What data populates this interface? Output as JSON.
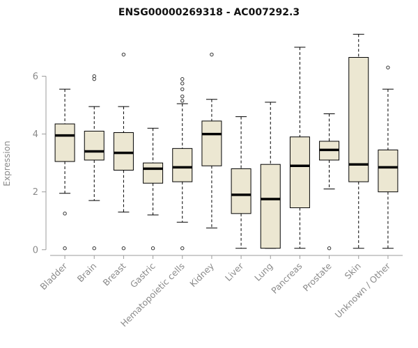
{
  "chart_data": {
    "type": "boxplot",
    "title": "ENSG00000269318 - AC007292.3",
    "ylabel": "Expression",
    "xlabel": "",
    "ylim": [
      -0.15,
      7.6
    ],
    "yticks": [
      0,
      2,
      4,
      6
    ],
    "grid": false,
    "legend": "none",
    "categories": [
      "Bladder",
      "Brain",
      "Breast",
      "Gastric",
      "Hematopoietic cells",
      "Kidney",
      "Liver",
      "Lung",
      "Pancreas",
      "Prostate",
      "Skin",
      "Unknown / Other"
    ],
    "boxes": [
      {
        "label": "Bladder",
        "low": 1.95,
        "q1": 3.05,
        "median": 3.95,
        "q3": 4.35,
        "high": 5.55,
        "outliers": [
          1.25,
          0.05
        ]
      },
      {
        "label": "Brain",
        "low": 1.7,
        "q1": 3.1,
        "median": 3.4,
        "q3": 4.1,
        "high": 4.95,
        "outliers": [
          5.9,
          6.0,
          0.05
        ]
      },
      {
        "label": "Breast",
        "low": 1.3,
        "q1": 2.75,
        "median": 3.35,
        "q3": 4.05,
        "high": 4.95,
        "outliers": [
          6.75,
          0.05
        ]
      },
      {
        "label": "Gastric",
        "low": 1.2,
        "q1": 2.3,
        "median": 2.8,
        "q3": 3.0,
        "high": 4.2,
        "outliers": [
          0.05
        ]
      },
      {
        "label": "Hematopoietic cells",
        "low": 0.95,
        "q1": 2.35,
        "median": 2.85,
        "q3": 3.5,
        "high": 5.05,
        "outliers": [
          5.15,
          5.3,
          5.55,
          5.75,
          5.9,
          0.05
        ]
      },
      {
        "label": "Kidney",
        "low": 0.75,
        "q1": 2.9,
        "median": 4.0,
        "q3": 4.45,
        "high": 5.2,
        "outliers": [
          6.75
        ]
      },
      {
        "label": "Liver",
        "low": 0.05,
        "q1": 1.25,
        "median": 1.9,
        "q3": 2.8,
        "high": 4.6,
        "outliers": []
      },
      {
        "label": "Lung",
        "low": 0.05,
        "q1": 0.05,
        "median": 1.75,
        "q3": 2.95,
        "high": 5.1,
        "outliers": []
      },
      {
        "label": "Pancreas",
        "low": 0.05,
        "q1": 1.45,
        "median": 2.9,
        "q3": 3.9,
        "high": 7.0,
        "outliers": []
      },
      {
        "label": "Prostate",
        "low": 2.1,
        "q1": 3.1,
        "median": 3.45,
        "q3": 3.75,
        "high": 4.7,
        "outliers": [
          0.05
        ]
      },
      {
        "label": "Skin",
        "low": 0.05,
        "q1": 2.35,
        "median": 2.95,
        "q3": 6.65,
        "high": 7.45,
        "outliers": []
      },
      {
        "label": "Unknown / Other",
        "low": 0.05,
        "q1": 2.0,
        "median": 2.85,
        "q3": 3.45,
        "high": 5.55,
        "outliers": [
          6.3
        ]
      }
    ],
    "style": {
      "box_fill": "#ECE7D2",
      "box_stroke": "#000000",
      "median_color": "#000000",
      "whisker_color": "#000000",
      "outlier_color": "#333333",
      "axis_color": "#9b9b9b",
      "tick_label_color": "#8a8a8a",
      "title_color": "#111111",
      "background": "#ffffff"
    }
  }
}
